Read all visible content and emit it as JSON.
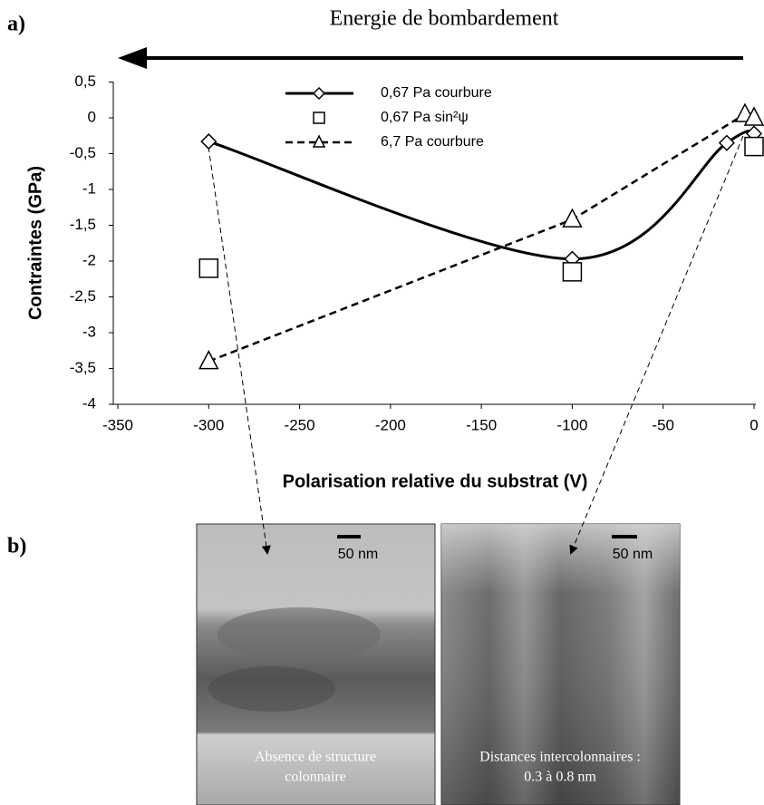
{
  "chart_data": {
    "type": "line",
    "panel_a": "a)",
    "panel_b": "b)",
    "top_annotation": "Energie de bombardement",
    "xlabel": "Polarisation relative du substrat (V)",
    "ylabel": "Contraintes (GPa)",
    "xlim": [
      -350,
      0
    ],
    "xticks": [
      -350,
      -300,
      -250,
      -200,
      -150,
      -100,
      -50,
      0
    ],
    "ylim": [
      -4,
      0.5
    ],
    "yticks": [
      {
        "value": 0.5,
        "label": "0,5"
      },
      0,
      {
        "value": -0.5,
        "label": "-0,5"
      },
      -1,
      {
        "value": -1.5,
        "label": "-1,5"
      },
      -2,
      {
        "value": -2.5,
        "label": "-2,5"
      },
      -3,
      {
        "value": -3.5,
        "label": "-3,5"
      },
      -4
    ],
    "series": [
      {
        "name": "0,67 Pa courbure",
        "color": "#000000",
        "line": "smooth",
        "marker": "diamond",
        "x": [
          -300,
          -100,
          -15,
          0
        ],
        "values": [
          -0.33,
          -1.97,
          -0.35,
          -0.22
        ]
      },
      {
        "name": "0,67 Pa sin²ψ",
        "color": "#000000",
        "line": "none",
        "marker": "square",
        "x": [
          -300,
          -100,
          0
        ],
        "values": [
          -2.1,
          -2.15,
          -0.4
        ]
      },
      {
        "name": "6,7 Pa courbure",
        "color": "#000000",
        "line": "dashed",
        "marker": "triangle",
        "x": [
          -300,
          -100,
          -5,
          0
        ],
        "values": [
          -3.4,
          -1.42,
          0.05,
          0.0
        ]
      }
    ],
    "images": [
      {
        "scale": "50 nm",
        "caption": [
          "Absence de structure",
          "colonnaire"
        ]
      },
      {
        "scale": "50 nm",
        "caption": [
          "Distances intercolonnaires :",
          "0.3 à 0.8 nm"
        ]
      }
    ]
  }
}
